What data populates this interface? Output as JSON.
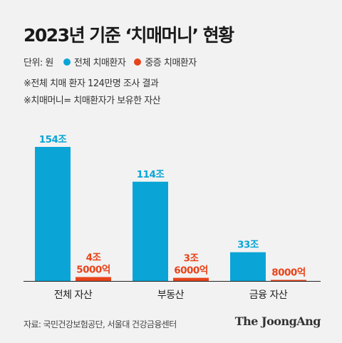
{
  "title": "2023년 기준 ‘치매머니’ 현황",
  "legend": {
    "unit": "단위: 원",
    "items": [
      {
        "label": "전체 치매환자",
        "color": "#0aa5d6"
      },
      {
        "label": "중증 치매환자",
        "color": "#e8431b"
      }
    ]
  },
  "notes": [
    "※전체 치매 환자 124만명 조사 결과",
    "※치매머니= 치매환자가 보유한 자산"
  ],
  "source": "자료: 국민건강보험공단, 서울대 건강금융센터",
  "brand": "The JoongAng",
  "chart_data": {
    "type": "bar",
    "categories": [
      "전체 자산",
      "부동산",
      "금융 자산"
    ],
    "series": [
      {
        "name": "전체 치매환자",
        "color": "#0aa5d6",
        "values": [
          154,
          114,
          33
        ],
        "labels": [
          "154조",
          "114조",
          "33조"
        ]
      },
      {
        "name": "중증 치매환자",
        "color": "#e8431b",
        "values": [
          4.5,
          3.6,
          0.8
        ],
        "labels": [
          "4조\n5000억",
          "3조\n6000억",
          "8000억"
        ]
      }
    ],
    "unit": "조 원",
    "ylim": [
      0,
      170
    ],
    "grid": false,
    "legend_position": "top-left"
  }
}
